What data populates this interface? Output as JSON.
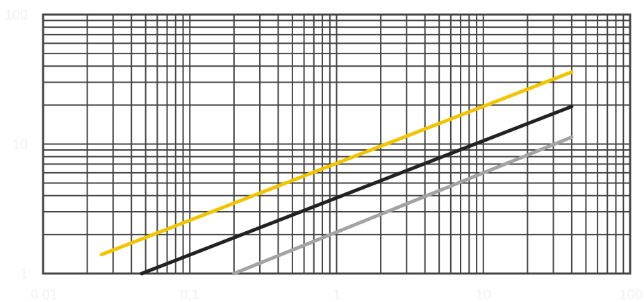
{
  "chart_data": {
    "type": "line",
    "title": "",
    "xlabel": "",
    "ylabel": "",
    "xscale": "log",
    "yscale": "log",
    "xlim": [
      0.01,
      100
    ],
    "ylim": [
      1,
      100
    ],
    "grid": true,
    "x_ticks": [
      {
        "value": 0.01,
        "label": "0.01"
      },
      {
        "value": 0.1,
        "label": "0.1"
      },
      {
        "value": 1,
        "label": "1"
      },
      {
        "value": 10,
        "label": "10"
      },
      {
        "value": 100,
        "label": "100"
      }
    ],
    "y_ticks": [
      {
        "value": 1,
        "label": "1"
      },
      {
        "value": 10,
        "label": "10"
      },
      {
        "value": 100,
        "label": "100"
      }
    ],
    "series": [
      {
        "color": "#f0c400",
        "x": [
          0.025,
          40
        ],
        "y": [
          1.4,
          36
        ]
      },
      {
        "color": "#222222",
        "x": [
          0.047,
          40
        ],
        "y": [
          1.0,
          19.5
        ]
      },
      {
        "color": "#a3a3a3",
        "x": [
          0.2,
          40
        ],
        "y": [
          1.0,
          11.3
        ]
      }
    ],
    "colors": {
      "grid": "#444444",
      "tick_label": "#f2f2f2",
      "background": "#ffffff"
    }
  }
}
